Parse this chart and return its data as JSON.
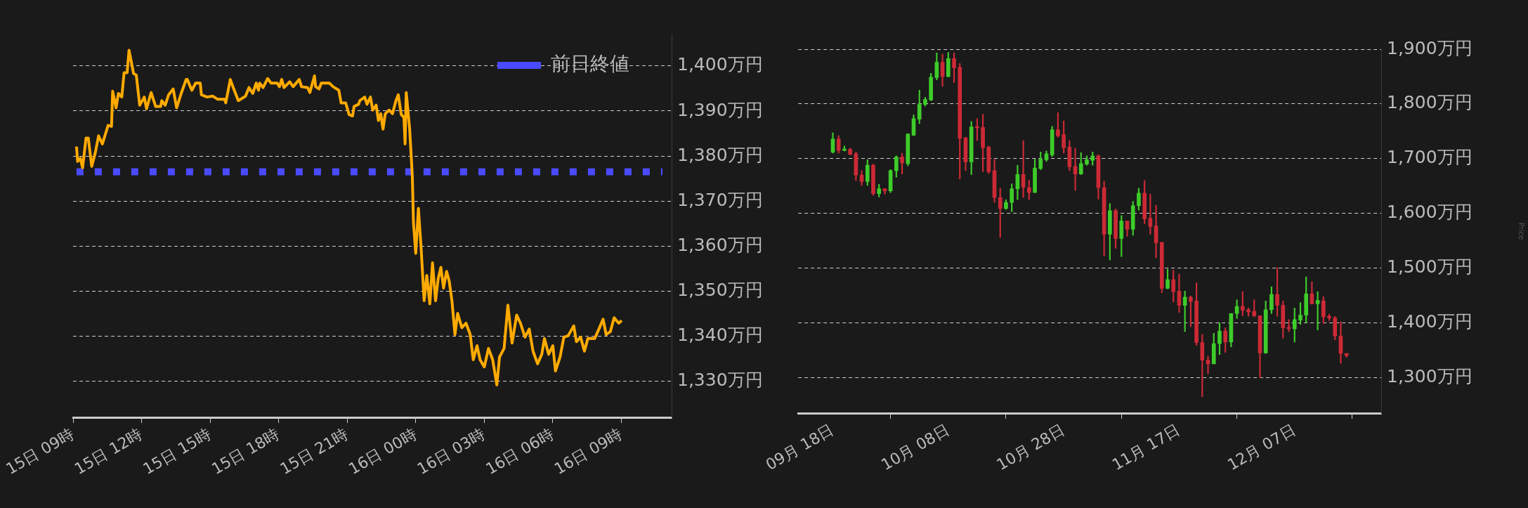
{
  "chart_data": [
    {
      "type": "line",
      "xlim": [
        "--12-15T09:00",
        "--12-16T11:12"
      ],
      "ylim": [
        1322,
        1407
      ],
      "xticks": [
        {
          "value": "--12-15T09:00",
          "label": "15日 09時"
        },
        {
          "value": "--12-15T12:00",
          "label": "15日 12時"
        },
        {
          "value": "--12-15T15:00",
          "label": "15日 15時"
        },
        {
          "value": "--12-15T18:00",
          "label": "15日 18時"
        },
        {
          "value": "--12-15T21:00",
          "label": "15日 21時"
        },
        {
          "value": "--12-16T00:00",
          "label": "16日 00時"
        },
        {
          "value": "--12-16T03:00",
          "label": "16日 03時"
        },
        {
          "value": "--12-16T06:00",
          "label": "16日 06時"
        },
        {
          "value": "--12-16T09:00",
          "label": "16日 09時"
        }
      ],
      "yticks": [
        {
          "value": 1330,
          "label": "1,330万円"
        },
        {
          "value": 1340,
          "label": "1,340万円"
        },
        {
          "value": 1350,
          "label": "1,350万円"
        },
        {
          "value": 1360,
          "label": "1,360万円"
        },
        {
          "value": 1370,
          "label": "1,370万円"
        },
        {
          "value": 1380,
          "label": "1,380万円"
        },
        {
          "value": 1390,
          "label": "1,390万円"
        },
        {
          "value": 1400,
          "label": "1,400万円"
        }
      ],
      "grid": "y",
      "legend": "top right",
      "series": [
        {
          "color": "#ffaa00",
          "x": [
            "--12-15T09:09",
            "--12-15T09:12",
            "--12-15T09:19",
            "--12-15T09:25",
            "--12-15T09:34",
            "--12-15T09:40",
            "--12-15T09:49",
            "--12-15T09:58",
            "--12-15T10:07",
            "--12-15T10:17",
            "--12-15T10:32",
            "--12-15T10:41",
            "--12-15T10:44",
            "--12-15T10:53",
            "--12-15T10:59",
            "--12-15T11:08",
            "--12-15T11:14",
            "--12-15T11:22",
            "--12-15T11:27",
            "--12-15T11:39",
            "--12-15T11:46",
            "--12-15T11:55",
            "--12-15T12:07",
            "--12-15T12:13",
            "--12-15T12:25",
            "--12-15T12:37",
            "--12-15T12:50",
            "--12-15T12:53",
            "--12-15T13:02",
            "--12-15T13:11",
            "--12-15T13:23",
            "--12-15T13:32",
            "--12-15T13:44",
            "--12-15T13:57",
            "--12-15T14:00",
            "--12-15T14:12",
            "--12-15T14:22",
            "--12-15T14:34",
            "--12-15T14:37",
            "--12-15T14:52",
            "--12-15T15:07",
            "--12-15T15:20",
            "--12-15T15:38",
            "--12-15T15:41",
            "--12-15T15:53",
            "--12-15T16:02",
            "--12-15T16:14",
            "--12-15T16:33",
            "--12-15T16:42",
            "--12-15T16:52",
            "--12-15T17:01",
            "--12-15T17:07",
            "--12-15T17:10",
            "--12-15T17:19",
            "--12-15T17:31",
            "--12-15T17:40",
            "--12-15T17:56",
            "--12-15T18:02",
            "--12-15T18:08",
            "--12-15T18:14",
            "--12-15T18:29",
            "--12-15T18:38",
            "--12-15T18:54",
            "--12-15T19:00",
            "--12-15T19:16",
            "--12-15T19:22",
            "--12-15T19:34",
            "--12-15T19:37",
            "--12-15T19:46",
            "--12-15T19:52",
            "--12-15T20:13",
            "--12-15T20:23",
            "--12-15T20:38",
            "--12-15T20:44",
            "--12-15T20:56",
            "--12-15T21:05",
            "--12-15T21:14",
            "--12-15T21:18",
            "--12-15T21:30",
            "--12-15T21:33",
            "--12-15T21:46",
            "--12-15T21:52",
            "--12-15T22:01",
            "--12-15T22:07",
            "--12-15T22:16",
            "--12-15T22:22",
            "--12-15T22:28",
            "--12-15T22:34",
            "--12-15T22:40",
            "--12-15T22:50",
            "--12-15T22:59",
            "--12-15T23:08",
            "--12-15T23:14",
            "--12-15T23:22",
            "--12-15T23:29",
            "--12-15T23:32",
            "--12-15T23:35",
            "--12-15T23:44",
            "--12-15T23:51",
            "--12-15T23:54",
            "--12-16T00:00",
            "--12-16T00:07",
            "--12-16T00:14",
            "--12-16T00:22",
            "--12-16T00:29",
            "--12-16T00:37",
            "--12-16T00:44",
            "--12-16T00:52",
            "--12-16T00:59",
            "--12-16T01:06",
            "--12-16T01:13",
            "--12-16T01:21",
            "--12-16T01:28",
            "--12-16T01:35",
            "--12-16T01:43",
            "--12-16T01:50",
            "--12-16T02:01",
            "--12-16T02:12",
            "--12-16T02:23",
            "--12-16T02:31",
            "--12-16T02:41",
            "--12-16T02:49",
            "--12-16T03:00",
            "--12-16T03:11",
            "--12-16T03:22",
            "--12-16T03:33",
            "--12-16T03:40",
            "--12-16T03:52",
            "--12-16T04:02",
            "--12-16T04:13",
            "--12-16T04:25",
            "--12-16T04:35",
            "--12-16T04:47",
            "--12-16T04:58",
            "--12-16T05:08",
            "--12-16T05:20",
            "--12-16T05:31",
            "--12-16T05:38",
            "--12-16T05:49",
            "--12-16T06:00",
            "--12-16T06:07",
            "--12-16T06:19",
            "--12-16T06:29",
            "--12-16T06:40",
            "--12-16T06:55",
            "--12-16T07:02",
            "--12-16T07:13",
            "--12-16T07:23",
            "--12-16T07:32",
            "--12-16T07:50",
            "--12-16T08:01",
            "--12-16T08:12",
            "--12-16T08:20",
            "--12-16T08:31",
            "--12-16T08:41",
            "--12-16T08:53",
            "--12-16T09:01"
          ],
          "values": [
            1382.1,
            1378.8,
            1379.5,
            1377.4,
            1384.0,
            1384.0,
            1377.7,
            1380.6,
            1384.5,
            1382.7,
            1386.8,
            1386.6,
            1394.4,
            1390.7,
            1393.9,
            1393.1,
            1398.5,
            1398.5,
            1403.5,
            1398.3,
            1398.0,
            1391.3,
            1393.1,
            1390.5,
            1394.1,
            1391.0,
            1391.0,
            1392.3,
            1391.3,
            1393.6,
            1394.9,
            1390.7,
            1393.9,
            1397.0,
            1397.0,
            1394.6,
            1396.2,
            1396.2,
            1393.6,
            1393.1,
            1393.3,
            1392.6,
            1392.6,
            1391.8,
            1397.0,
            1394.9,
            1392.3,
            1393.3,
            1395.2,
            1393.9,
            1396.2,
            1394.6,
            1396.2,
            1395.2,
            1397.2,
            1396.2,
            1396.2,
            1395.4,
            1397.0,
            1395.2,
            1396.5,
            1395.4,
            1397.0,
            1395.4,
            1395.2,
            1394.1,
            1397.8,
            1395.4,
            1394.9,
            1396.2,
            1396.2,
            1395.4,
            1394.6,
            1391.8,
            1391.8,
            1389.2,
            1388.9,
            1391.0,
            1391.5,
            1392.3,
            1393.1,
            1391.5,
            1393.1,
            1390.2,
            1391.3,
            1387.9,
            1389.4,
            1386.0,
            1389.4,
            1390.2,
            1389.4,
            1392.3,
            1393.6,
            1389.2,
            1388.6,
            1382.7,
            1394.1,
            1386.0,
            1375.6,
            1365.2,
            1358.4,
            1368.4,
            1359.7,
            1347.9,
            1353.5,
            1347.2,
            1356.3,
            1347.9,
            1352.8,
            1355.3,
            1350.7,
            1354.4,
            1352.2,
            1347.9,
            1340.4,
            1345.1,
            1341.9,
            1342.9,
            1340.4,
            1334.8,
            1337.9,
            1334.8,
            1333.2,
            1337.3,
            1334.8,
            1329.2,
            1335.4,
            1337.3,
            1346.9,
            1338.5,
            1344.7,
            1342.9,
            1339.8,
            1341.6,
            1336.7,
            1333.9,
            1336.0,
            1339.5,
            1336.0,
            1337.9,
            1332.3,
            1335.4,
            1339.8,
            1340.1,
            1342.3,
            1338.8,
            1339.8,
            1336.7,
            1339.5,
            1339.5,
            1341.6,
            1343.8,
            1340.4,
            1341.0,
            1344.1,
            1342.9,
            1343.5
          ]
        },
        {
          "name": "前日終値",
          "color": "#4a4aff",
          "line_style": "dotted",
          "x": [
            "--12-15T09:09",
            "--12-16T10:48"
          ],
          "values": [
            1376.5,
            1376.5
          ]
        }
      ]
    },
    {
      "type": "candlestick",
      "ylabel": "Price",
      "xlim": [
        "--09-12",
        "--12-22"
      ],
      "ylim": [
        1235,
        1900
      ],
      "xticks": [
        {
          "value": "--09-18",
          "label": "09月 18日"
        },
        {
          "value": "--10-08",
          "label": "10月 08日"
        },
        {
          "value": "--10-28",
          "label": "10月 28日"
        },
        {
          "value": "--11-17",
          "label": "11月 17日"
        },
        {
          "value": "--12-07",
          "label": "12月 07日"
        }
      ],
      "yticks": [
        {
          "value": 1300,
          "label": "1,300万円"
        },
        {
          "value": 1400,
          "label": "1,400万円"
        },
        {
          "value": 1500,
          "label": "1,500万円"
        },
        {
          "value": 1600,
          "label": "1,600万円"
        },
        {
          "value": 1700,
          "label": "1,700万円"
        },
        {
          "value": 1800,
          "label": "1,800万円"
        },
        {
          "value": 1900,
          "label": "1,900万円"
        }
      ],
      "grid": "y",
      "x": [
        "--09-18",
        "--09-19",
        "--09-20",
        "--09-21",
        "--09-22",
        "--09-23",
        "--09-24",
        "--09-25",
        "--09-26",
        "--09-27",
        "--09-28",
        "--09-29",
        "--09-30",
        "--10-01",
        "--10-02",
        "--10-03",
        "--10-04",
        "--10-05",
        "--10-06",
        "--10-07",
        "--10-08",
        "--10-09",
        "--10-10",
        "--10-11",
        "--10-12",
        "--10-13",
        "--10-14",
        "--10-15",
        "--10-16",
        "--10-17",
        "--10-18",
        "--10-19",
        "--10-20",
        "--10-21",
        "--10-22",
        "--10-23",
        "--10-24",
        "--10-25",
        "--10-26",
        "--10-27",
        "--10-28",
        "--10-29",
        "--10-30",
        "--10-31",
        "--11-01",
        "--11-02",
        "--11-03",
        "--11-04",
        "--11-05",
        "--11-06",
        "--11-07",
        "--11-08",
        "--11-09",
        "--11-10",
        "--11-11",
        "--11-12",
        "--11-13",
        "--11-14",
        "--11-15",
        "--11-16",
        "--11-17",
        "--11-18",
        "--11-19",
        "--11-20",
        "--11-21",
        "--11-22",
        "--11-23",
        "--11-24",
        "--11-25",
        "--11-26",
        "--11-27",
        "--11-28",
        "--11-29",
        "--11-30",
        "--12-01",
        "--12-02",
        "--12-03",
        "--12-04",
        "--12-05",
        "--12-06",
        "--12-07",
        "--12-08",
        "--12-09",
        "--12-10",
        "--12-11",
        "--12-12",
        "--12-13",
        "--12-14",
        "--12-15",
        "--12-16"
      ],
      "ohlc": [
        [
          1712,
          1747,
          1710,
          1736
        ],
        [
          1736,
          1742,
          1710,
          1715
        ],
        [
          1715,
          1723,
          1714,
          1716
        ],
        [
          1717,
          1719,
          1707,
          1708
        ],
        [
          1709,
          1712,
          1660,
          1670
        ],
        [
          1670,
          1678,
          1651,
          1658
        ],
        [
          1658,
          1698,
          1651,
          1688
        ],
        [
          1688,
          1690,
          1633,
          1636
        ],
        [
          1636,
          1653,
          1630,
          1645
        ],
        [
          1645,
          1645,
          1635,
          1641
        ],
        [
          1641,
          1680,
          1638,
          1678
        ],
        [
          1678,
          1705,
          1666,
          1703
        ],
        [
          1703,
          1710,
          1672,
          1692
        ],
        [
          1691,
          1746,
          1687,
          1745
        ],
        [
          1743,
          1780,
          1742,
          1773
        ],
        [
          1772,
          1825,
          1764,
          1799
        ],
        [
          1799,
          1812,
          1796,
          1808
        ],
        [
          1807,
          1856,
          1806,
          1849
        ],
        [
          1848,
          1893,
          1844,
          1876
        ],
        [
          1876,
          1891,
          1832,
          1850
        ],
        [
          1850,
          1894,
          1849,
          1883
        ],
        [
          1883,
          1893,
          1839,
          1866
        ],
        [
          1867,
          1874,
          1663,
          1737
        ],
        [
          1738,
          1739,
          1678,
          1694
        ],
        [
          1694,
          1768,
          1671,
          1758
        ],
        [
          1757,
          1773,
          1733,
          1756
        ],
        [
          1757,
          1781,
          1676,
          1720
        ],
        [
          1721,
          1723,
          1673,
          1676
        ],
        [
          1678,
          1699,
          1620,
          1629
        ],
        [
          1629,
          1646,
          1556,
          1609
        ],
        [
          1609,
          1625,
          1607,
          1620
        ],
        [
          1620,
          1654,
          1603,
          1645
        ],
        [
          1645,
          1688,
          1625,
          1671
        ],
        [
          1671,
          1733,
          1629,
          1648
        ],
        [
          1647,
          1661,
          1625,
          1638
        ],
        [
          1638,
          1699,
          1638,
          1683
        ],
        [
          1682,
          1712,
          1680,
          1699
        ],
        [
          1698,
          1714,
          1695,
          1709
        ],
        [
          1707,
          1759,
          1704,
          1753
        ],
        [
          1753,
          1784,
          1739,
          1742
        ],
        [
          1744,
          1769,
          1710,
          1720
        ],
        [
          1721,
          1733,
          1678,
          1685
        ],
        [
          1686,
          1719,
          1642,
          1672
        ],
        [
          1672,
          1711,
          1671,
          1691
        ],
        [
          1690,
          1705,
          1688,
          1698
        ],
        [
          1697,
          1712,
          1688,
          1705
        ],
        [
          1705,
          1707,
          1626,
          1647
        ],
        [
          1647,
          1659,
          1522,
          1562
        ],
        [
          1562,
          1618,
          1515,
          1605
        ],
        [
          1605,
          1608,
          1536,
          1554
        ],
        [
          1554,
          1596,
          1521,
          1586
        ],
        [
          1586,
          1586,
          1558,
          1571
        ],
        [
          1571,
          1622,
          1560,
          1614
        ],
        [
          1614,
          1646,
          1606,
          1637
        ],
        [
          1637,
          1660,
          1581,
          1590
        ],
        [
          1591,
          1635,
          1562,
          1576
        ],
        [
          1577,
          1615,
          1519,
          1546
        ],
        [
          1547,
          1547,
          1455,
          1463
        ],
        [
          1463,
          1498,
          1462,
          1479
        ],
        [
          1479,
          1496,
          1438,
          1457
        ],
        [
          1458,
          1489,
          1419,
          1432
        ],
        [
          1432,
          1458,
          1384,
          1447
        ],
        [
          1447,
          1449,
          1393,
          1439
        ],
        [
          1440,
          1473,
          1359,
          1364
        ],
        [
          1364,
          1379,
          1265,
          1332
        ],
        [
          1332,
          1339,
          1307,
          1325
        ],
        [
          1325,
          1381,
          1325,
          1362
        ],
        [
          1362,
          1400,
          1342,
          1385
        ],
        [
          1385,
          1391,
          1346,
          1365
        ],
        [
          1365,
          1417,
          1356,
          1417
        ],
        [
          1417,
          1442,
          1408,
          1430
        ],
        [
          1430,
          1457,
          1413,
          1423
        ],
        [
          1424,
          1427,
          1412,
          1420
        ],
        [
          1421,
          1442,
          1411,
          1413
        ],
        [
          1413,
          1413,
          1300,
          1345
        ],
        [
          1345,
          1440,
          1344,
          1424
        ],
        [
          1424,
          1466,
          1417,
          1452
        ],
        [
          1452,
          1501,
          1412,
          1432
        ],
        [
          1432,
          1440,
          1372,
          1391
        ],
        [
          1392,
          1406,
          1384,
          1389
        ],
        [
          1389,
          1427,
          1365,
          1406
        ],
        [
          1405,
          1437,
          1397,
          1414
        ],
        [
          1414,
          1484,
          1400,
          1453
        ],
        [
          1453,
          1475,
          1434,
          1435
        ],
        [
          1435,
          1457,
          1387,
          1441
        ],
        [
          1440,
          1448,
          1399,
          1411
        ],
        [
          1412,
          1416,
          1404,
          1409
        ],
        [
          1409,
          1412,
          1369,
          1376
        ],
        [
          1376,
          1402,
          1326,
          1344
        ],
        [
          1344,
          1344,
          1337,
          1340
        ]
      ],
      "colors": [
        "#3ecc2a",
        "#cc2a36",
        "#3ecc2a",
        "#cc2a36",
        "#cc2a36",
        "#cc2a36",
        "#3ecc2a",
        "#cc2a36",
        "#3ecc2a",
        "#cc2a36",
        "#3ecc2a",
        "#3ecc2a",
        "#cc2a36",
        "#3ecc2a",
        "#3ecc2a",
        "#3ecc2a",
        "#3ecc2a",
        "#3ecc2a",
        "#3ecc2a",
        "#cc2a36",
        "#3ecc2a",
        "#cc2a36",
        "#cc2a36",
        "#cc2a36",
        "#3ecc2a",
        "#cc2a36",
        "#cc2a36",
        "#cc2a36",
        "#cc2a36",
        "#cc2a36",
        "#3ecc2a",
        "#3ecc2a",
        "#3ecc2a",
        "#cc2a36",
        "#cc2a36",
        "#3ecc2a",
        "#3ecc2a",
        "#3ecc2a",
        "#3ecc2a",
        "#cc2a36",
        "#cc2a36",
        "#cc2a36",
        "#cc2a36",
        "#3ecc2a",
        "#3ecc2a",
        "#3ecc2a",
        "#cc2a36",
        "#cc2a36",
        "#3ecc2a",
        "#cc2a36",
        "#3ecc2a",
        "#cc2a36",
        "#3ecc2a",
        "#3ecc2a",
        "#cc2a36",
        "#cc2a36",
        "#cc2a36",
        "#cc2a36",
        "#3ecc2a",
        "#cc2a36",
        "#cc2a36",
        "#3ecc2a",
        "#cc2a36",
        "#cc2a36",
        "#cc2a36",
        "#cc2a36",
        "#3ecc2a",
        "#3ecc2a",
        "#cc2a36",
        "#3ecc2a",
        "#3ecc2a",
        "#cc2a36",
        "#cc2a36",
        "#cc2a36",
        "#cc2a36",
        "#3ecc2a",
        "#3ecc2a",
        "#cc2a36",
        "#cc2a36",
        "#cc2a36",
        "#3ecc2a",
        "#3ecc2a",
        "#3ecc2a",
        "#cc2a36",
        "#3ecc2a",
        "#cc2a36",
        "#cc2a36",
        "#cc2a36",
        "#cc2a36",
        "#cc2a36"
      ]
    }
  ]
}
